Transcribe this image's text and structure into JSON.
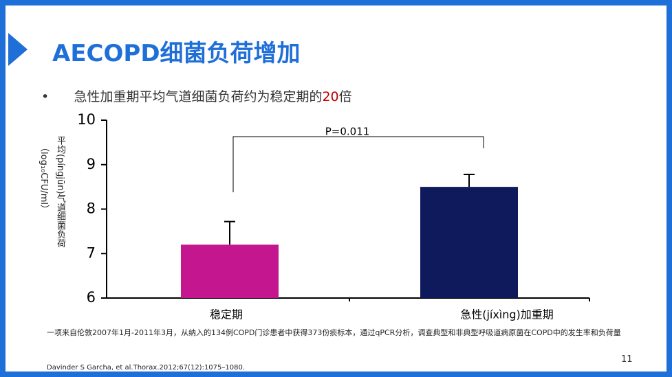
{
  "slide": {
    "title": "AECOPD细菌负荷增加",
    "bullet": {
      "before": "急性加重期平均气道细菌负荷约为稳定期的",
      "highlight": "20",
      "after": "倍"
    },
    "footnote": "一项来自伦敦2007年1月-2011年3月，从纳入的134例COPD门诊患者中获得373份痰标本，通过qPCR分析，调查典型和非典型呼吸道病原菌在COPD中的发生率和负荷量",
    "citation": "Davinder S Garcha, et al.Thorax.2012;67(12):1075–1080.",
    "page_number": "11"
  },
  "chart_data": {
    "type": "bar",
    "y_label": "平均(píngjūn)气道细菌负荷",
    "y_label_unit": "（log₁₀CFU/ml）",
    "annotation": "P=0.011",
    "categories": [
      "稳定期",
      "急性(jíxìng)加重期"
    ],
    "values": [
      7.2,
      8.5
    ],
    "errors": [
      0.52,
      0.28
    ],
    "colors": [
      "#c4168f",
      "#0f1a5c"
    ],
    "ylim": [
      6,
      10
    ],
    "yticks": [
      6,
      7,
      8,
      9,
      10
    ]
  }
}
